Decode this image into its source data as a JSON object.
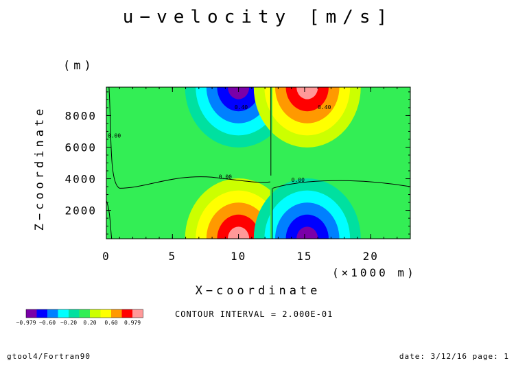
{
  "chart_data": {
    "type": "contour",
    "title": "u−velocity [m/s]",
    "xlabel": "X−coordinate",
    "xunit": "(×1000 m)",
    "ylabel": "Z−coordinate",
    "yunit": "(m)",
    "xlim": [
      0,
      23
    ],
    "ylim": [
      200,
      9800
    ],
    "xticks": [
      0,
      5,
      10,
      15,
      20
    ],
    "yticks": [
      2000,
      4000,
      6000,
      8000
    ],
    "contour_interval": "CONTOUR INTERVAL = 2.000E-01",
    "cell_extrema": [
      {
        "x": 10,
        "z": 9800,
        "value": -0.979
      },
      {
        "x": 15.2,
        "z": 9800,
        "value": 0.979
      },
      {
        "x": 10,
        "z": 200,
        "value": 0.979
      },
      {
        "x": 15.2,
        "z": 200,
        "value": -0.979
      }
    ],
    "contour_labels": [
      {
        "text": "0.40",
        "x": 10.2,
        "z": 8400
      },
      {
        "text": "0.40",
        "x": 16.5,
        "z": 8400
      },
      {
        "text": "0.00",
        "x": 9.0,
        "z": 4000
      },
      {
        "text": "0.00",
        "x": 14.5,
        "z": 3800
      },
      {
        "text": "0.00",
        "x": 0.6,
        "z": 6600
      }
    ],
    "legend": {
      "labels": [
        "−0.979",
        "−0.60",
        "−0.20",
        "0.20",
        "0.60",
        "0.979"
      ],
      "colors": [
        "#7a00a8",
        "#0000ff",
        "#0080ff",
        "#00ffff",
        "#00e0a0",
        "#33ee55",
        "#ccff00",
        "#ffff00",
        "#ff9900",
        "#ff0000",
        "#ff9999"
      ]
    }
  },
  "footer": {
    "left": "gtool4/Fortran90",
    "right": "date: 3/12/16 page: 1"
  }
}
